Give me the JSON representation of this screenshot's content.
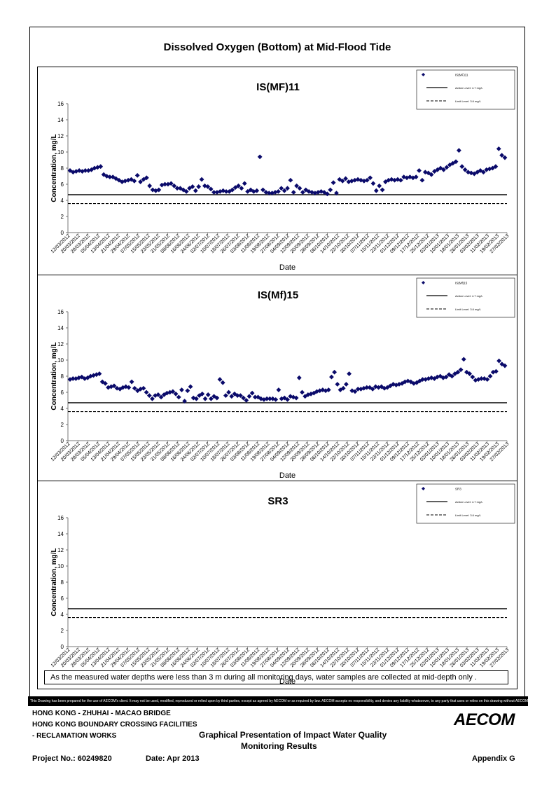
{
  "page": {
    "title": "Dissolved Oxygen (Bottom) at Mid-Flood Tide",
    "note": "As the measured water depths were less than 3 m during all monitoring days, water samples are collected  at mid-depth only .",
    "disclaimer": "This Drawing has been prepared for the use of AECOM's client. It may not be used, modified, reproduced or relied upon by third parties, except as agreed by AECOM or as required by law. AECOM accepts no responsibility, and denies any liability whatsoever, to any party that uses or relies on this drawing without AECOM's express written consent."
  },
  "footer": {
    "line1": "HONG KONG - ZHUHAI - MACAO BRIDGE",
    "line2": "HONG KONG BOUNDARY CROSSING FACILITIES",
    "line3": "- RECLAMATION WORKS",
    "center1": "Graphical Presentation of Impact Water Quality",
    "center2": "Monitoring Results",
    "project": "Project No.: 60249820",
    "date": "Date: Apr 2013",
    "appendix": "Appendix G",
    "logo": "AECOM"
  },
  "chart_data": [
    {
      "type": "scatter",
      "title": "IS(MF)11",
      "xlabel": "Date",
      "ylabel": "Concentration, mg/L",
      "ylim": [
        0,
        16
      ],
      "yticks": [
        0,
        2,
        4,
        6,
        8,
        10,
        12,
        14,
        16
      ],
      "x_tick_labels": [
        "12/03/2012",
        "20/03/2012",
        "28/03/2012",
        "05/04/2012",
        "13/04/2012",
        "21/04/2012",
        "29/04/2012",
        "07/05/2012",
        "15/05/2012",
        "23/05/2012",
        "31/05/2012",
        "08/06/2012",
        "16/06/2012",
        "24/06/2012",
        "02/07/2012",
        "10/07/2012",
        "18/07/2012",
        "26/07/2012",
        "03/08/2012",
        "11/08/2012",
        "19/08/2012",
        "27/08/2012",
        "04/09/2012",
        "12/09/2012",
        "20/09/2012",
        "28/09/2012",
        "06/10/2012",
        "14/10/2012",
        "22/10/2012",
        "30/10/2012",
        "07/11/2012",
        "15/11/2012",
        "23/11/2012",
        "01/12/2012",
        "09/12/2012",
        "17/12/2012",
        "25/12/2012",
        "02/01/2013",
        "10/01/2013",
        "18/01/2013",
        "26/01/2013",
        "03/02/2013",
        "11/02/2013",
        "19/02/2013",
        "27/02/2013"
      ],
      "legend": [
        "IS(MF)11",
        "Action Level: 4.7 mg/L",
        "Limit Level: 3.6 mg/L"
      ],
      "action_level": 4.7,
      "limit_level": 3.6,
      "values": [
        7.7,
        7.5,
        7.6,
        7.7,
        7.6,
        7.7,
        7.7,
        7.8,
        8.0,
        8.1,
        8.2,
        7.2,
        7.0,
        6.9,
        6.9,
        6.7,
        6.5,
        6.3,
        6.4,
        6.5,
        6.6,
        6.4,
        7.1,
        6.3,
        6.6,
        6.8,
        5.8,
        5.3,
        5.2,
        5.3,
        5.9,
        6.0,
        6.0,
        6.1,
        5.8,
        5.5,
        5.5,
        5.3,
        5.1,
        5.5,
        5.7,
        5.2,
        5.7,
        6.6,
        5.8,
        5.7,
        5.4,
        5.0,
        5.0,
        5.1,
        5.2,
        5.1,
        5.1,
        5.3,
        5.6,
        5.8,
        5.5,
        6.1,
        5.1,
        5.3,
        5.1,
        5.2,
        9.4,
        5.3,
        5.0,
        4.9,
        4.9,
        5.0,
        5.1,
        5.5,
        5.2,
        5.5,
        6.5,
        5.0,
        5.8,
        5.5,
        5.0,
        5.3,
        5.1,
        5.0,
        4.9,
        5.0,
        5.1,
        5.0,
        4.8,
        5.3,
        6.2,
        4.9,
        6.6,
        6.4,
        6.7,
        6.3,
        6.4,
        6.5,
        6.6,
        6.5,
        6.4,
        6.5,
        6.8,
        6.1,
        5.2,
        5.8,
        5.3,
        6.3,
        6.5,
        6.6,
        6.5,
        6.6,
        6.5,
        6.9,
        6.8,
        6.9,
        6.8,
        6.9,
        7.7,
        6.5,
        7.5,
        7.4,
        7.2,
        7.6,
        7.8,
        8.0,
        7.8,
        8.1,
        8.4,
        8.6,
        8.8,
        10.2,
        8.2,
        7.8,
        7.5,
        7.4,
        7.3,
        7.5,
        7.7,
        7.5,
        7.8,
        7.9,
        8.0,
        8.2,
        10.4,
        9.6,
        9.3
      ]
    },
    {
      "type": "scatter",
      "title": "IS(Mf)15",
      "xlabel": "Date",
      "ylabel": "Concentration, mg/L",
      "ylim": [
        0,
        16
      ],
      "yticks": [
        0,
        2,
        4,
        6,
        8,
        10,
        12,
        14,
        16
      ],
      "x_tick_labels": [
        "12/03/2012",
        "20/03/2012",
        "28/03/2012",
        "05/04/2012",
        "13/04/2012",
        "21/04/2012",
        "29/04/2012",
        "07/05/2012",
        "15/05/2012",
        "23/05/2012",
        "31/05/2012",
        "08/06/2012",
        "16/06/2012",
        "24/06/2012",
        "02/07/2012",
        "10/07/2012",
        "18/07/2012",
        "26/07/2012",
        "03/08/2012",
        "11/08/2012",
        "19/08/2012",
        "27/08/2012",
        "04/09/2012",
        "12/09/2012",
        "20/09/2012",
        "28/09/2012",
        "06/10/2012",
        "14/10/2012",
        "22/10/2012",
        "30/10/2012",
        "07/11/2012",
        "15/11/2012",
        "23/11/2012",
        "01/12/2012",
        "09/12/2012",
        "17/12/2012",
        "25/12/2012",
        "02/01/2013",
        "10/01/2013",
        "18/01/2013",
        "26/01/2013",
        "03/02/2013",
        "11/02/2013",
        "19/02/2013",
        "27/02/2013"
      ],
      "legend": [
        "IS(Mf)15",
        "Action Level: 4.7 mg/L",
        "Limit Level: 3.6 mg/L"
      ],
      "action_level": 4.7,
      "limit_level": 3.6,
      "values": [
        7.6,
        7.7,
        7.7,
        7.8,
        7.9,
        7.7,
        7.8,
        8.0,
        8.1,
        8.2,
        8.3,
        7.3,
        7.1,
        6.6,
        6.7,
        6.8,
        6.5,
        6.4,
        6.6,
        6.7,
        6.6,
        7.3,
        6.5,
        6.2,
        6.4,
        6.5,
        6.0,
        5.6,
        5.2,
        5.6,
        5.7,
        5.4,
        5.7,
        5.9,
        6.0,
        6.1,
        5.8,
        5.4,
        6.3,
        4.9,
        6.2,
        6.7,
        5.3,
        5.2,
        5.6,
        5.8,
        5.2,
        5.7,
        5.2,
        5.5,
        5.3,
        7.6,
        7.2,
        5.6,
        6.0,
        5.5,
        5.8,
        5.6,
        5.6,
        5.3,
        5.0,
        5.5,
        5.9,
        5.4,
        5.4,
        5.2,
        5.1,
        5.2,
        5.2,
        5.2,
        5.1,
        6.3,
        5.2,
        5.3,
        5.1,
        5.5,
        5.4,
        5.3,
        7.8,
        6.0,
        5.5,
        5.7,
        5.8,
        5.9,
        6.1,
        6.2,
        6.3,
        6.2,
        6.3,
        7.9,
        8.5,
        7.0,
        6.3,
        6.5,
        7.0,
        8.3,
        6.2,
        6.1,
        6.4,
        6.4,
        6.5,
        6.6,
        6.6,
        6.4,
        6.7,
        6.6,
        6.7,
        6.5,
        6.6,
        6.8,
        7.0,
        6.9,
        7.0,
        7.1,
        7.3,
        7.4,
        7.3,
        7.1,
        7.2,
        7.4,
        7.6,
        7.6,
        7.7,
        7.8,
        7.7,
        7.9,
        8.0,
        7.8,
        7.9,
        8.2,
        8.0,
        8.3,
        8.5,
        8.8,
        10.1,
        8.5,
        8.3,
        7.9,
        7.5,
        7.6,
        7.7,
        7.7,
        7.6,
        8.0,
        8.5,
        8.6,
        9.9,
        9.5,
        9.3
      ]
    },
    {
      "type": "scatter",
      "title": "SR3",
      "xlabel": "Date",
      "ylabel": "Concentration, mg/L",
      "ylim": [
        0,
        16
      ],
      "yticks": [
        0,
        2,
        4,
        6,
        8,
        10,
        12,
        14,
        16
      ],
      "x_tick_labels": [
        "12/03/2012",
        "20/03/2012",
        "28/03/2012",
        "05/04/2012",
        "13/04/2012",
        "21/04/2012",
        "29/04/2012",
        "07/05/2012",
        "15/05/2012",
        "23/05/2012",
        "31/05/2012",
        "08/06/2012",
        "16/06/2012",
        "24/06/2012",
        "02/07/2012",
        "10/07/2012",
        "18/07/2012",
        "26/07/2012",
        "03/08/2012",
        "11/08/2012",
        "19/08/2012",
        "27/08/2012",
        "04/09/2012",
        "12/09/2012",
        "20/09/2012",
        "28/09/2012",
        "06/10/2012",
        "14/10/2012",
        "22/10/2012",
        "30/10/2012",
        "07/11/2012",
        "15/11/2012",
        "23/11/2012",
        "01/12/2012",
        "09/12/2012",
        "17/12/2012",
        "25/12/2012",
        "02/01/2013",
        "10/01/2013",
        "18/01/2013",
        "26/01/2013",
        "03/02/2013",
        "11/02/2013",
        "19/02/2013",
        "27/02/2013"
      ],
      "legend": [
        "SR3",
        "Action Level: 4.7 mg/L",
        "Limit Level: 3.6 mg/L"
      ],
      "action_level": 4.7,
      "limit_level": 3.6,
      "values": []
    }
  ]
}
